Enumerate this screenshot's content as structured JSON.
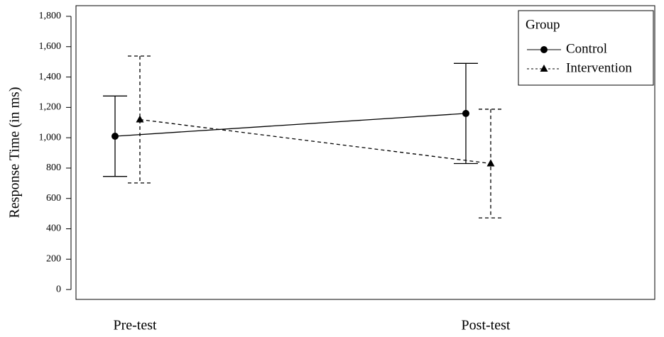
{
  "chart_data": {
    "type": "line",
    "y_label": "Response Time (in ms)",
    "categories": [
      "Pre-test",
      "Post-test"
    ],
    "ylim": [
      -65,
      1870
    ],
    "yticks": [
      0,
      200,
      400,
      600,
      800,
      {
        "value": 1000,
        "label": "1,000"
      },
      {
        "value": 1200,
        "label": "1,200"
      },
      {
        "value": 1400,
        "label": "1,400"
      },
      {
        "value": 1600,
        "label": "1,600"
      },
      {
        "value": 1800,
        "label": "1,800"
      }
    ],
    "legend_title": "Group",
    "legend": "upper right",
    "series": [
      {
        "name": "Control",
        "color": "#000000",
        "linestyle": "solid",
        "marker": "circle",
        "values": [
          1010,
          1160
        ],
        "errors": [
          265,
          330
        ]
      },
      {
        "name": "Intervention",
        "color": "#000000",
        "linestyle": "dashed",
        "marker": "triangle",
        "values": [
          1120,
          830
        ],
        "errors": [
          418,
          358
        ]
      }
    ]
  }
}
